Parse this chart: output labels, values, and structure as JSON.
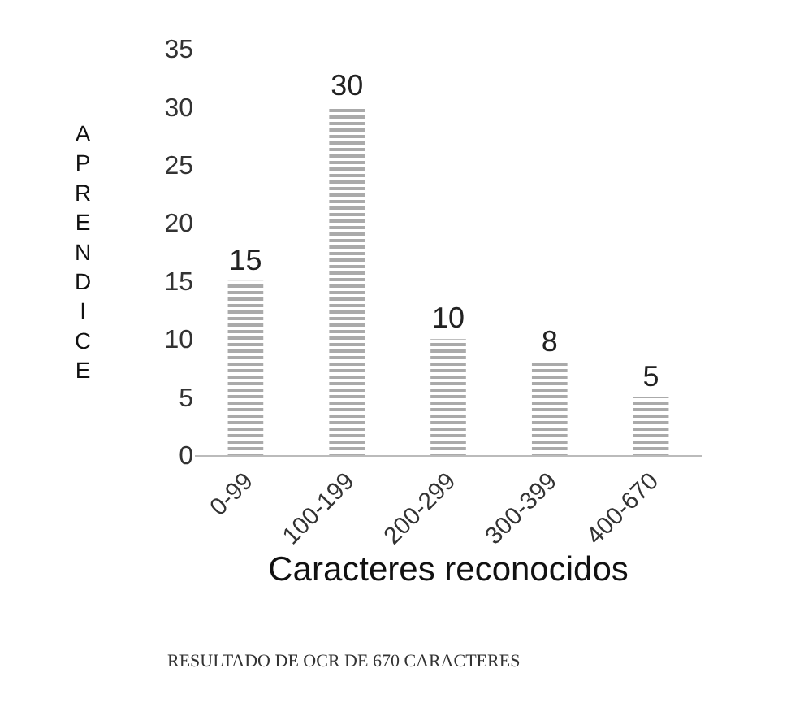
{
  "chart_data": {
    "type": "bar",
    "xlabel": "Caracteres reconocidos",
    "ylabel": "APRENDICE",
    "categories": [
      "0-99",
      "100-199",
      "200-299",
      "300-399",
      "400-670"
    ],
    "values": [
      15,
      30,
      10,
      8,
      5
    ],
    "color": "#555555",
    "ylim": [
      0,
      35
    ],
    "yticks": [
      0,
      5,
      10,
      15,
      20,
      25,
      30,
      35
    ],
    "legend": false,
    "data_labels": true,
    "annotations": [
      "RESULTADO DE OCR DE 670 CARACTERES"
    ]
  }
}
